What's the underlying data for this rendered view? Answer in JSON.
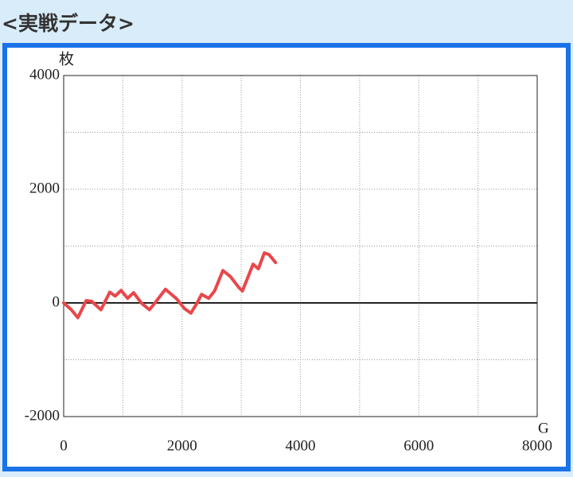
{
  "header": {
    "title": "<実戦データ>"
  },
  "chart_data": {
    "type": "line",
    "y_label": "枚",
    "x_label": "G",
    "x": [
      0,
      130,
      240,
      380,
      470,
      630,
      780,
      870,
      970,
      1080,
      1180,
      1320,
      1450,
      1550,
      1720,
      1910,
      2040,
      2150,
      2260,
      2330,
      2450,
      2550,
      2690,
      2820,
      2960,
      3020,
      3200,
      3290,
      3390,
      3470,
      3580
    ],
    "values": [
      0,
      -120,
      -260,
      40,
      30,
      -120,
      190,
      120,
      220,
      80,
      180,
      -10,
      -120,
      10,
      240,
      70,
      -100,
      -180,
      10,
      150,
      80,
      210,
      570,
      460,
      270,
      210,
      680,
      600,
      880,
      850,
      710
    ],
    "color": "#e8474a",
    "xlim": [
      0,
      8000
    ],
    "xticks": [
      0,
      2000,
      4000,
      6000,
      8000
    ],
    "ylim": [
      -2000,
      4000
    ],
    "yticks": [
      -2000,
      0,
      2000,
      4000
    ],
    "x_minor_ticks": [
      1000,
      3000,
      5000,
      7000
    ],
    "y_minor_ticks": [
      -1000,
      1000,
      3000
    ],
    "grid": true
  }
}
